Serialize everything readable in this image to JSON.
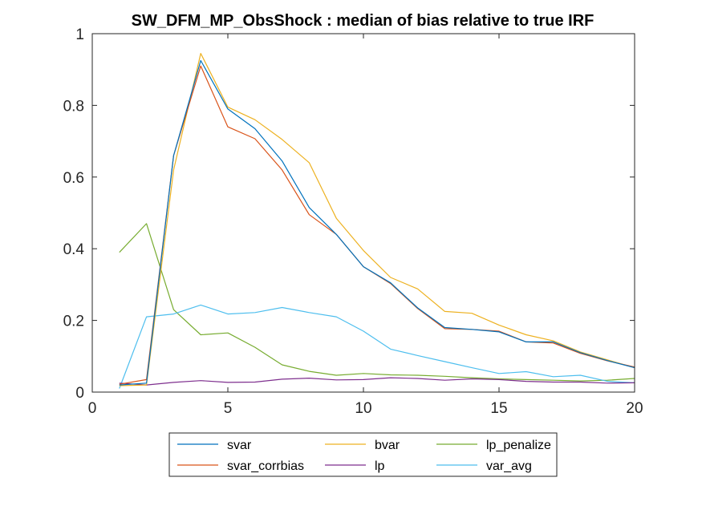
{
  "chart_data": {
    "type": "line",
    "title": "SW_DFM_MP_ObsShock : median of bias relative to true IRF",
    "xlabel": "",
    "ylabel": "",
    "xlim": [
      0,
      20
    ],
    "ylim": [
      0,
      1
    ],
    "xticks": [
      0,
      5,
      10,
      15,
      20
    ],
    "yticks": [
      0,
      0.2,
      0.4,
      0.6,
      0.8,
      1
    ],
    "xtick_labels": [
      "0",
      "5",
      "10",
      "15",
      "20"
    ],
    "ytick_labels": [
      "0",
      "0.2",
      "0.4",
      "0.6",
      "0.8",
      "1"
    ],
    "grid": false,
    "legend_position": "bottom-outside",
    "x": [
      1,
      2,
      3,
      4,
      5,
      6,
      7,
      8,
      9,
      10,
      11,
      12,
      13,
      14,
      15,
      16,
      17,
      18,
      19,
      20
    ],
    "series": [
      {
        "name": "svar",
        "color": "#0072BD",
        "values": [
          0.02,
          0.025,
          0.66,
          0.925,
          0.79,
          0.735,
          0.645,
          0.515,
          0.44,
          0.35,
          0.305,
          0.235,
          0.18,
          0.175,
          0.168,
          0.14,
          0.14,
          0.11,
          0.088,
          0.068
        ]
      },
      {
        "name": "svar_corrbias",
        "color": "#D95319",
        "values": [
          0.022,
          0.035,
          0.66,
          0.91,
          0.74,
          0.707,
          0.62,
          0.495,
          0.44,
          0.35,
          0.303,
          0.233,
          0.177,
          0.175,
          0.17,
          0.14,
          0.137,
          0.108,
          0.087,
          0.07
        ]
      },
      {
        "name": "bvar",
        "color": "#EDB120",
        "values": [
          0.018,
          0.02,
          0.62,
          0.945,
          0.795,
          0.76,
          0.705,
          0.64,
          0.485,
          0.395,
          0.32,
          0.288,
          0.225,
          0.22,
          0.187,
          0.16,
          0.143,
          0.112,
          0.09,
          0.068
        ]
      },
      {
        "name": "lp",
        "color": "#7E2F8E",
        "values": [
          0.025,
          0.02,
          0.027,
          0.032,
          0.027,
          0.028,
          0.036,
          0.039,
          0.034,
          0.035,
          0.04,
          0.038,
          0.033,
          0.037,
          0.035,
          0.03,
          0.028,
          0.028,
          0.025,
          0.026
        ]
      },
      {
        "name": "lp_penalize",
        "color": "#77AC30",
        "values": [
          0.39,
          0.47,
          0.23,
          0.16,
          0.165,
          0.125,
          0.076,
          0.058,
          0.047,
          0.052,
          0.048,
          0.047,
          0.044,
          0.04,
          0.037,
          0.035,
          0.033,
          0.031,
          0.033,
          0.038
        ]
      },
      {
        "name": "var_avg",
        "color": "#4DBEEE",
        "values": [
          0.01,
          0.21,
          0.218,
          0.243,
          0.218,
          0.222,
          0.236,
          0.222,
          0.21,
          0.17,
          0.12,
          0.102,
          0.085,
          0.068,
          0.052,
          0.057,
          0.043,
          0.047,
          0.03,
          0.026
        ]
      }
    ]
  }
}
